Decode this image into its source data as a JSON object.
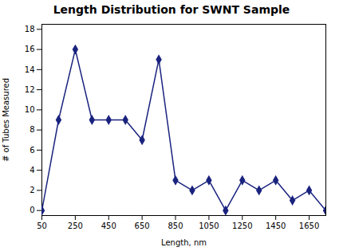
{
  "chart_data": {
    "type": "line",
    "title": "Length Distribution for SWNT Sample",
    "xlabel": "Length, nm",
    "ylabel": "# of Tubes Measured",
    "x": [
      50,
      150,
      250,
      350,
      450,
      550,
      650,
      750,
      850,
      950,
      1050,
      1150,
      1250,
      1350,
      1450,
      1550,
      1650,
      1750
    ],
    "values": [
      0,
      9,
      16,
      9,
      9,
      9,
      7,
      15,
      3,
      2,
      3,
      0,
      3,
      2,
      3,
      1,
      2,
      0
    ],
    "color": "#1a237e",
    "marker": "diamond",
    "xlim": [
      50,
      1750
    ],
    "ylim": [
      -0.5,
      18.5
    ],
    "xticks": [
      50,
      250,
      450,
      650,
      850,
      1050,
      1250,
      1450,
      1650
    ],
    "yticks": [
      0,
      2,
      4,
      6,
      8,
      10,
      12,
      14,
      16,
      18
    ],
    "grid": false
  }
}
